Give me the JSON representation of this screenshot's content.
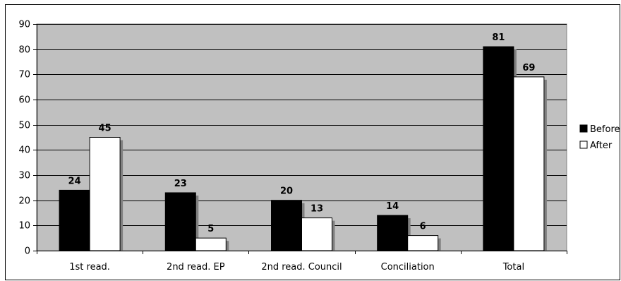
{
  "chart_data": {
    "type": "bar",
    "title": "",
    "xlabel": "",
    "ylabel": "",
    "ylim": [
      0,
      90
    ],
    "yticks": [
      0,
      10,
      20,
      30,
      40,
      50,
      60,
      70,
      80,
      90
    ],
    "grid": true,
    "legend_position": "right",
    "categories": [
      "1st read.",
      "2nd read. EP",
      "2nd read. Council",
      "Conciliation",
      "Total"
    ],
    "series": [
      {
        "name": "Before",
        "color": "#000000",
        "values": [
          24,
          23,
          20,
          14,
          81
        ]
      },
      {
        "name": "After",
        "color": "#ffffff",
        "values": [
          45,
          5,
          13,
          6,
          69
        ]
      }
    ],
    "plot_background": "#c0c0c0",
    "bar_shadow_color": "#808080"
  }
}
